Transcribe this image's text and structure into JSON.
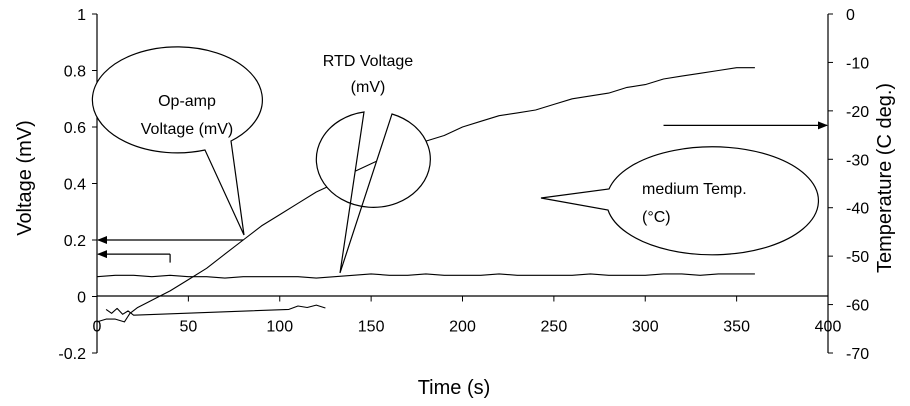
{
  "chart_data": {
    "type": "line",
    "xlabel": "Time (s)",
    "ylabel": "Voltage (mV)",
    "y2label": "Temperature (C deg.)",
    "xlim": [
      0,
      400
    ],
    "ylim": [
      -0.2,
      1
    ],
    "y2lim": [
      -70,
      0
    ],
    "xticks": [
      "0",
      "50",
      "100",
      "150",
      "200",
      "250",
      "300",
      "350",
      "400"
    ],
    "yticks": [
      "-0.2",
      "0",
      "0.2",
      "0.4",
      "0.6",
      "0.8",
      "1"
    ],
    "y2ticks": [
      "-70",
      "-60",
      "-50",
      "-40",
      "-30",
      "-20",
      "-10",
      "0"
    ],
    "grid": false,
    "series": [
      {
        "name": "Op-amp Voltage (mV)",
        "axis": "left",
        "x": [
          0,
          5,
          10,
          15,
          18,
          22,
          28,
          34,
          40,
          50,
          60,
          70,
          80,
          90,
          100,
          110,
          120,
          130,
          140,
          150,
          160,
          170,
          180,
          190,
          200,
          210,
          220,
          230,
          240,
          250,
          260,
          270,
          280,
          290,
          300,
          310,
          320,
          330,
          340,
          350,
          360
        ],
        "y": [
          -0.09,
          -0.08,
          -0.08,
          -0.09,
          -0.06,
          -0.04,
          -0.02,
          0.0,
          0.02,
          0.06,
          0.1,
          0.15,
          0.2,
          0.25,
          0.29,
          0.33,
          0.37,
          0.4,
          0.44,
          0.47,
          0.5,
          0.53,
          0.55,
          0.57,
          0.6,
          0.62,
          0.64,
          0.65,
          0.66,
          0.68,
          0.7,
          0.71,
          0.72,
          0.74,
          0.75,
          0.77,
          0.78,
          0.79,
          0.8,
          0.81,
          0.81
        ]
      },
      {
        "name": "RTD Voltage (mV)",
        "axis": "left",
        "x": [
          0,
          10,
          20,
          30,
          40,
          50,
          60,
          70,
          80,
          90,
          100,
          110,
          120,
          130,
          140,
          150,
          160,
          170,
          180,
          190,
          200,
          210,
          220,
          230,
          240,
          250,
          260,
          270,
          280,
          290,
          300,
          310,
          320,
          330,
          340,
          350,
          360
        ],
        "y": [
          0.07,
          0.075,
          0.075,
          0.07,
          0.075,
          0.07,
          0.07,
          0.065,
          0.07,
          0.07,
          0.07,
          0.07,
          0.065,
          0.07,
          0.075,
          0.08,
          0.075,
          0.075,
          0.08,
          0.075,
          0.075,
          0.075,
          0.08,
          0.075,
          0.075,
          0.075,
          0.075,
          0.08,
          0.075,
          0.075,
          0.075,
          0.08,
          0.08,
          0.075,
          0.08,
          0.08,
          0.08
        ]
      },
      {
        "name": "medium Temp. (°C)",
        "axis": "right",
        "x": [
          5,
          8,
          11,
          14,
          17,
          20,
          105,
          110,
          115,
          120,
          125
        ],
        "y": [
          -61.0,
          -61.8,
          -60.8,
          -62.0,
          -61.3,
          -62.2,
          -61.0,
          -60.3,
          -60.6,
          -60.1,
          -60.7
        ]
      }
    ],
    "callouts": [
      {
        "lines": [
          "Op-amp",
          "Voltage (mV)"
        ],
        "points_to": [
          80,
          0.2
        ]
      },
      {
        "lines": [
          "RTD Voltage",
          "(mV)"
        ],
        "points_to": [
          133,
          0.07
        ]
      },
      {
        "lines": [
          "medium Temp.",
          "(°C)"
        ],
        "points_to": [
          250,
          -42
        ]
      }
    ],
    "axis_arrows": [
      {
        "from_x": 80,
        "to_x": 0,
        "y": 0.2,
        "axis": "left",
        "direction": "left"
      },
      {
        "from_x": 40,
        "to_x": 0,
        "y": 0.15,
        "axis": "left",
        "direction": "left",
        "drop_to_y": 0.12
      },
      {
        "from_x": 310,
        "to_x": 400,
        "y": -23,
        "axis": "right",
        "direction": "right"
      }
    ]
  }
}
